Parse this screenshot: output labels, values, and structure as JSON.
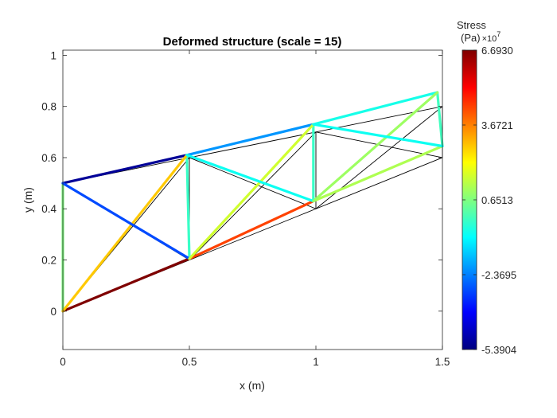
{
  "chart_data": {
    "type": "line",
    "title": "Deformed structure (scale = 15)",
    "xlabel": "x (m)",
    "ylabel": "y (m)",
    "xlim": [
      0,
      1.5
    ],
    "ylim": [
      -0.15,
      1.02
    ],
    "xticks": [
      0,
      0.5,
      1,
      1.5
    ],
    "xtick_labels": [
      "0",
      "0.5",
      "1",
      "1.5"
    ],
    "yticks": [
      0,
      0.2,
      0.4,
      0.6,
      0.8,
      1
    ],
    "ytick_labels": [
      "0",
      "0.2",
      "0.4",
      "0.6",
      "0.8",
      "1"
    ],
    "grid": false,
    "colormap": "jet",
    "colorbar": {
      "title_line1": "Stress",
      "title_line2": "(Pa)",
      "multiplier_base": "×10",
      "multiplier_exp": "7",
      "min": -5.3904,
      "max": 6.693,
      "tick_values": [
        6.693,
        3.6721,
        0.6513,
        -2.3695,
        -5.3904
      ],
      "tick_labels": [
        "6.6930",
        "3.6721",
        "0.6513",
        "-2.3695",
        "-5.3904"
      ]
    },
    "undeformed_structure": {
      "color": "#000000",
      "members": [
        [
          [
            0,
            0
          ],
          [
            0.5,
            0.2
          ]
        ],
        [
          [
            0.5,
            0.2
          ],
          [
            1,
            0.4
          ]
        ],
        [
          [
            1,
            0.4
          ],
          [
            1.5,
            0.6
          ]
        ],
        [
          [
            0,
            0.5
          ],
          [
            0.5,
            0.6
          ]
        ],
        [
          [
            0.5,
            0.6
          ],
          [
            1,
            0.7
          ]
        ],
        [
          [
            1,
            0.7
          ],
          [
            1.5,
            0.8
          ]
        ],
        [
          [
            0,
            0
          ],
          [
            0,
            0.5
          ]
        ],
        [
          [
            0.5,
            0.2
          ],
          [
            0.5,
            0.6
          ]
        ],
        [
          [
            1,
            0.4
          ],
          [
            1,
            0.7
          ]
        ],
        [
          [
            1.5,
            0.6
          ],
          [
            1.5,
            0.8
          ]
        ],
        [
          [
            0,
            0
          ],
          [
            0.5,
            0.6
          ]
        ],
        [
          [
            0,
            0.5
          ],
          [
            0.5,
            0.2
          ]
        ],
        [
          [
            0.5,
            0.2
          ],
          [
            1,
            0.7
          ]
        ],
        [
          [
            0.5,
            0.6
          ],
          [
            1,
            0.4
          ]
        ],
        [
          [
            1,
            0.4
          ],
          [
            1.5,
            0.8
          ]
        ],
        [
          [
            1,
            0.7
          ],
          [
            1.5,
            0.6
          ]
        ]
      ]
    },
    "deformed_members": [
      {
        "start": [
          0,
          0
        ],
        "end": [
          0.5,
          0.205
        ],
        "stress": 6.693
      },
      {
        "start": [
          0.5,
          0.205
        ],
        "end": [
          0.99,
          0.43
        ],
        "stress": 4.4
      },
      {
        "start": [
          0.99,
          0.43
        ],
        "end": [
          1.5,
          0.645
        ],
        "stress": 1.2
      },
      {
        "start": [
          0,
          0.5
        ],
        "end": [
          0.49,
          0.61
        ],
        "stress": -5.1
      },
      {
        "start": [
          0.49,
          0.61
        ],
        "end": [
          0.99,
          0.73
        ],
        "stress": -2.1
      },
      {
        "start": [
          0.99,
          0.73
        ],
        "end": [
          1.48,
          0.855
        ],
        "stress": -0.6
      },
      {
        "start": [
          0,
          0
        ],
        "end": [
          0,
          0.5
        ],
        "stress": 0.65
      },
      {
        "start": [
          0.5,
          0.205
        ],
        "end": [
          0.49,
          0.61
        ],
        "stress": -0.2
      },
      {
        "start": [
          0.99,
          0.43
        ],
        "end": [
          0.99,
          0.73
        ],
        "stress": -0.2
      },
      {
        "start": [
          1.5,
          0.645
        ],
        "end": [
          1.48,
          0.855
        ],
        "stress": -0.1
      },
      {
        "start": [
          0,
          0
        ],
        "end": [
          0.49,
          0.61
        ],
        "stress": 2.8
      },
      {
        "start": [
          0,
          0.5
        ],
        "end": [
          0.5,
          0.205
        ],
        "stress": -3.0
      },
      {
        "start": [
          0.5,
          0.205
        ],
        "end": [
          0.99,
          0.73
        ],
        "stress": 1.6
      },
      {
        "start": [
          0.49,
          0.61
        ],
        "end": [
          0.99,
          0.43
        ],
        "stress": -0.7
      },
      {
        "start": [
          0.99,
          0.43
        ],
        "end": [
          1.48,
          0.855
        ],
        "stress": 1.0
      },
      {
        "start": [
          0.99,
          0.73
        ],
        "end": [
          1.5,
          0.645
        ],
        "stress": -0.7
      }
    ]
  }
}
